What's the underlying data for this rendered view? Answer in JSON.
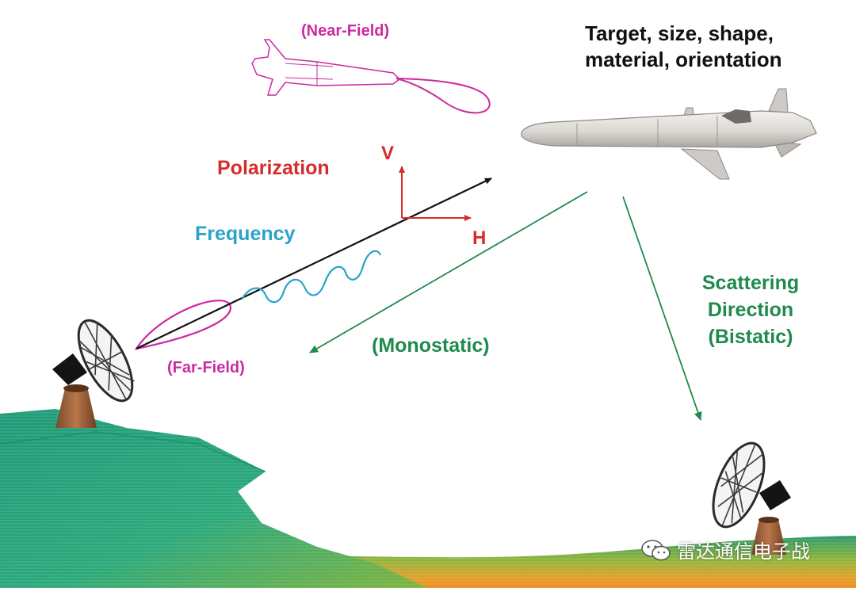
{
  "labels": {
    "target_line1": "Target, size, shape,",
    "target_line2": "material, orientation",
    "near_field": "(Near-Field)",
    "polarization": "Polarization",
    "v": "V",
    "h": "H",
    "frequency": "Frequency",
    "far_field": "(Far-Field)",
    "monostatic": "(Monostatic)",
    "scatter_line1": "Scattering",
    "scatter_line2": "Direction",
    "scatter_line3": "(Bistatic)"
  },
  "watermark": {
    "text": "雷达通信电子战",
    "icon": "wechat-icon"
  },
  "colors": {
    "near_far_field": "#cc2a9e",
    "polarization": "#d72b2b",
    "frequency": "#2aa3c9",
    "scattering": "#1f8a4c",
    "target_text": "#111111"
  }
}
